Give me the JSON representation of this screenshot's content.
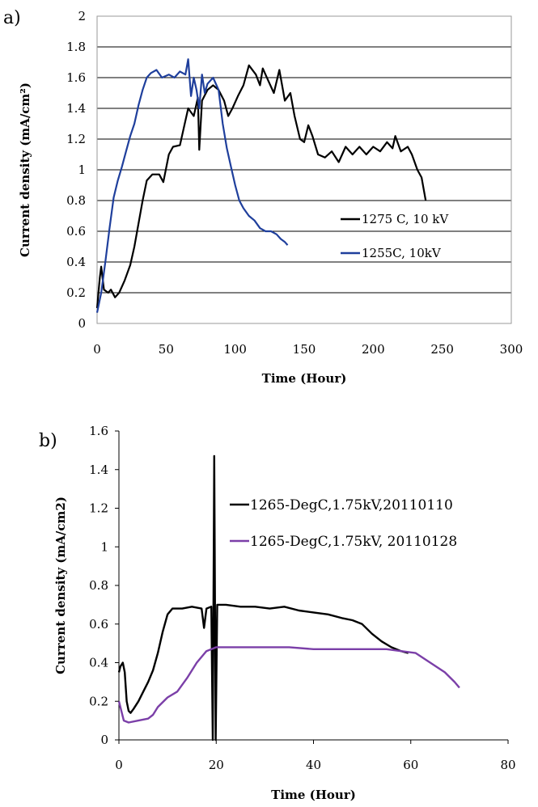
{
  "chart_data": [
    {
      "type": "line",
      "panel_label": "a)",
      "xlabel": "Time (Hour)",
      "ylabel": "Current density (mA/cm²)",
      "xlim": [
        0,
        300
      ],
      "ylim": [
        0,
        2
      ],
      "x_ticks": [
        "0",
        "50",
        "100",
        "150",
        "200",
        "250",
        "300"
      ],
      "y_ticks": [
        "0",
        "0.2",
        "0.4",
        "0.6",
        "0.8",
        "1",
        "1.2",
        "1.4",
        "1.6",
        "1.8",
        "2"
      ],
      "grid": "horizontal",
      "legend_position": "middle-right",
      "series": [
        {
          "name": "1275 C, 10 kV",
          "color": "#000000",
          "points": [
            [
              0,
              0.1
            ],
            [
              2,
              0.3
            ],
            [
              3,
              0.37
            ],
            [
              5,
              0.22
            ],
            [
              8,
              0.2
            ],
            [
              10,
              0.22
            ],
            [
              13,
              0.17
            ],
            [
              16,
              0.2
            ],
            [
              20,
              0.28
            ],
            [
              24,
              0.38
            ],
            [
              27,
              0.5
            ],
            [
              30,
              0.65
            ],
            [
              33,
              0.8
            ],
            [
              36,
              0.93
            ],
            [
              40,
              0.97
            ],
            [
              45,
              0.97
            ],
            [
              48,
              0.92
            ],
            [
              52,
              1.1
            ],
            [
              55,
              1.15
            ],
            [
              60,
              1.16
            ],
            [
              63,
              1.28
            ],
            [
              66,
              1.4
            ],
            [
              70,
              1.35
            ],
            [
              73,
              1.47
            ],
            [
              74,
              1.13
            ],
            [
              76,
              1.45
            ],
            [
              80,
              1.52
            ],
            [
              84,
              1.55
            ],
            [
              88,
              1.52
            ],
            [
              92,
              1.45
            ],
            [
              95,
              1.35
            ],
            [
              98,
              1.4
            ],
            [
              102,
              1.48
            ],
            [
              106,
              1.55
            ],
            [
              110,
              1.68
            ],
            [
              115,
              1.62
            ],
            [
              118,
              1.55
            ],
            [
              120,
              1.66
            ],
            [
              124,
              1.58
            ],
            [
              128,
              1.5
            ],
            [
              132,
              1.65
            ],
            [
              136,
              1.45
            ],
            [
              140,
              1.5
            ],
            [
              143,
              1.35
            ],
            [
              147,
              1.2
            ],
            [
              150,
              1.18
            ],
            [
              153,
              1.29
            ],
            [
              156,
              1.22
            ],
            [
              160,
              1.1
            ],
            [
              165,
              1.08
            ],
            [
              170,
              1.12
            ],
            [
              175,
              1.05
            ],
            [
              180,
              1.15
            ],
            [
              185,
              1.1
            ],
            [
              190,
              1.15
            ],
            [
              195,
              1.1
            ],
            [
              200,
              1.15
            ],
            [
              205,
              1.12
            ],
            [
              210,
              1.18
            ],
            [
              214,
              1.14
            ],
            [
              216,
              1.22
            ],
            [
              220,
              1.12
            ],
            [
              225,
              1.15
            ],
            [
              228,
              1.1
            ],
            [
              232,
              1.0
            ],
            [
              235,
              0.95
            ],
            [
              238,
              0.8
            ]
          ]
        },
        {
          "name": "1255C, 10kV",
          "color": "#1f3f9c",
          "points": [
            [
              0,
              0.07
            ],
            [
              3,
              0.2
            ],
            [
              6,
              0.4
            ],
            [
              9,
              0.62
            ],
            [
              12,
              0.82
            ],
            [
              15,
              0.93
            ],
            [
              18,
              1.02
            ],
            [
              21,
              1.12
            ],
            [
              24,
              1.22
            ],
            [
              27,
              1.3
            ],
            [
              30,
              1.42
            ],
            [
              33,
              1.52
            ],
            [
              36,
              1.6
            ],
            [
              39,
              1.63
            ],
            [
              43,
              1.65
            ],
            [
              47,
              1.6
            ],
            [
              52,
              1.62
            ],
            [
              56,
              1.6
            ],
            [
              60,
              1.64
            ],
            [
              64,
              1.62
            ],
            [
              66,
              1.72
            ],
            [
              68,
              1.48
            ],
            [
              70,
              1.6
            ],
            [
              72,
              1.52
            ],
            [
              74,
              1.4
            ],
            [
              76,
              1.62
            ],
            [
              78,
              1.5
            ],
            [
              80,
              1.56
            ],
            [
              84,
              1.6
            ],
            [
              88,
              1.52
            ],
            [
              91,
              1.3
            ],
            [
              94,
              1.14
            ],
            [
              97,
              1.02
            ],
            [
              100,
              0.9
            ],
            [
              103,
              0.8
            ],
            [
              106,
              0.75
            ],
            [
              110,
              0.7
            ],
            [
              114,
              0.67
            ],
            [
              118,
              0.62
            ],
            [
              122,
              0.6
            ],
            [
              126,
              0.6
            ],
            [
              130,
              0.58
            ],
            [
              133,
              0.55
            ],
            [
              136,
              0.53
            ],
            [
              138,
              0.51
            ]
          ]
        }
      ]
    },
    {
      "type": "line",
      "panel_label": "b)",
      "xlabel": "Time (Hour)",
      "ylabel": "Current density (mA/cm2)",
      "xlim": [
        0,
        80
      ],
      "ylim": [
        0,
        1.6
      ],
      "x_ticks": [
        "0",
        "20",
        "40",
        "60",
        "80"
      ],
      "y_ticks": [
        "0",
        "0.2",
        "0.4",
        "0.6",
        "0.8",
        "1",
        "1.2",
        "1.4",
        "1.6"
      ],
      "grid": "none",
      "legend_position": "top-right",
      "series": [
        {
          "name": "1265-DegC,1.75kV,20110110",
          "color": "#000000",
          "points": [
            [
              0,
              0.35
            ],
            [
              0.3,
              0.38
            ],
            [
              0.8,
              0.4
            ],
            [
              1.2,
              0.35
            ],
            [
              1.6,
              0.2
            ],
            [
              2.0,
              0.15
            ],
            [
              2.4,
              0.14
            ],
            [
              3,
              0.16
            ],
            [
              4,
              0.2
            ],
            [
              5,
              0.25
            ],
            [
              6,
              0.3
            ],
            [
              7,
              0.36
            ],
            [
              8,
              0.45
            ],
            [
              9,
              0.56
            ],
            [
              10,
              0.65
            ],
            [
              11,
              0.68
            ],
            [
              13,
              0.68
            ],
            [
              15,
              0.69
            ],
            [
              17,
              0.68
            ],
            [
              17.5,
              0.58
            ],
            [
              18,
              0.68
            ],
            [
              19,
              0.69
            ],
            [
              19.3,
              0.0
            ],
            [
              19.6,
              1.47
            ],
            [
              19.9,
              0.0
            ],
            [
              20.2,
              0.7
            ],
            [
              22,
              0.7
            ],
            [
              25,
              0.69
            ],
            [
              28,
              0.69
            ],
            [
              31,
              0.68
            ],
            [
              34,
              0.69
            ],
            [
              37,
              0.67
            ],
            [
              40,
              0.66
            ],
            [
              43,
              0.65
            ],
            [
              46,
              0.63
            ],
            [
              48,
              0.62
            ],
            [
              50,
              0.6
            ],
            [
              52,
              0.55
            ],
            [
              54,
              0.51
            ],
            [
              56,
              0.48
            ],
            [
              58,
              0.46
            ],
            [
              59.5,
              0.45
            ]
          ]
        },
        {
          "name": "1265-DegC,1.75kV, 20110128",
          "color": "#7b3fa8",
          "points": [
            [
              0,
              0.2
            ],
            [
              0.5,
              0.15
            ],
            [
              1,
              0.1
            ],
            [
              2,
              0.09
            ],
            [
              4,
              0.1
            ],
            [
              6,
              0.11
            ],
            [
              7,
              0.13
            ],
            [
              8,
              0.17
            ],
            [
              10,
              0.22
            ],
            [
              12,
              0.25
            ],
            [
              14,
              0.32
            ],
            [
              16,
              0.4
            ],
            [
              18,
              0.46
            ],
            [
              20,
              0.48
            ],
            [
              22,
              0.48
            ],
            [
              25,
              0.48
            ],
            [
              30,
              0.48
            ],
            [
              35,
              0.48
            ],
            [
              40,
              0.47
            ],
            [
              45,
              0.47
            ],
            [
              50,
              0.47
            ],
            [
              55,
              0.47
            ],
            [
              58,
              0.46
            ],
            [
              61,
              0.45
            ],
            [
              64,
              0.4
            ],
            [
              67,
              0.35
            ],
            [
              69,
              0.3
            ],
            [
              70,
              0.27
            ]
          ]
        }
      ]
    }
  ]
}
